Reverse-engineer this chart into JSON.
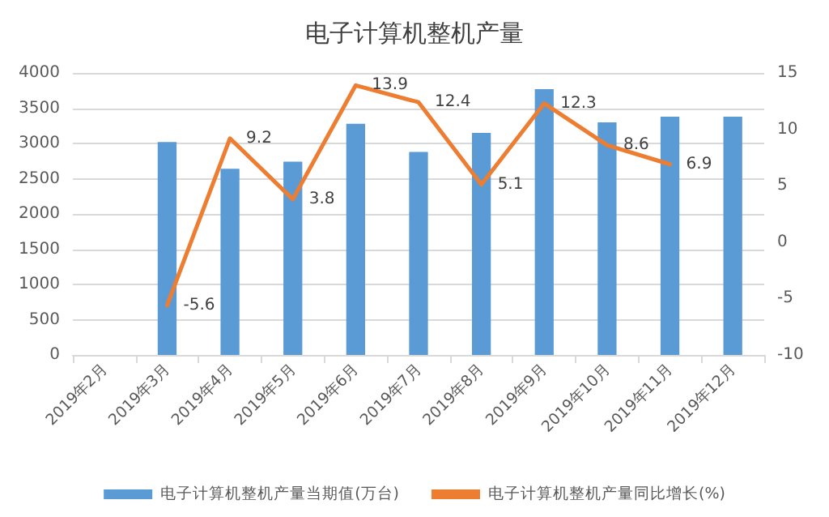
{
  "chart_data": {
    "type": "bar",
    "title": "电子计算机整机产量",
    "categories": [
      "2019年2月",
      "2019年3月",
      "2019年4月",
      "2019年5月",
      "2019年6月",
      "2019年7月",
      "2019年8月",
      "2019年9月",
      "2019年10月",
      "2019年11月",
      "2019年12月"
    ],
    "series": [
      {
        "name": "电子计算机整机产量当期值(万台)",
        "color": "#5b9bd5",
        "values": [
          null,
          3020,
          2640,
          2740,
          3280,
          2880,
          3150,
          3770,
          3300,
          3380,
          3380
        ]
      },
      {
        "name": "电子计算机整机产量同比增长(%)",
        "type": "line",
        "axis": "y2",
        "color": "#ed7d31",
        "values": [
          null,
          -5.6,
          9.2,
          3.8,
          13.9,
          12.4,
          5.1,
          12.3,
          8.6,
          6.9,
          null
        ],
        "value_labels": [
          null,
          "-5.6",
          "9.2",
          "3.8",
          "13.9",
          "12.4",
          "5.1",
          "12.3",
          "8.6",
          "6.9",
          null
        ]
      }
    ],
    "ylim": [
      0,
      4000
    ],
    "yticks": [
      0,
      500,
      1000,
      1500,
      2000,
      2500,
      3000,
      3500,
      4000
    ],
    "y2lim": [
      -10,
      15
    ],
    "y2ticks": [
      -10,
      -5,
      0,
      5,
      10,
      15
    ],
    "grid": "y",
    "legend": "bottom",
    "marker": "none",
    "line_style": "solid"
  }
}
